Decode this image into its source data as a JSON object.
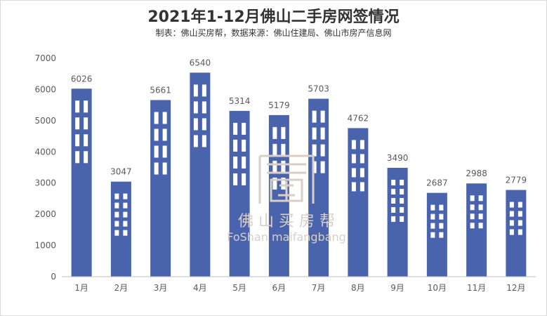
{
  "header": {
    "title": "2021年1-12月佛山二手房网签情况",
    "subtitle": "制表：佛山买房帮，数据来源：佛山住建局、佛山市房产信息网"
  },
  "watermark": {
    "chinese": "佛 山 买 房 帮",
    "english": "FoShan maifangbang"
  },
  "colors": {
    "bar": "#4a63ad",
    "window": "#ffffff",
    "axis": "#bfbfbf",
    "text": "#595959",
    "watermark": "#d8cfc6"
  },
  "chart_data": {
    "type": "bar",
    "title": "2021年1-12月佛山二手房网签情况",
    "xlabel": "",
    "ylabel": "",
    "ylim": [
      0,
      7000
    ],
    "yticks": [
      0,
      1000,
      2000,
      3000,
      4000,
      5000,
      6000,
      7000
    ],
    "grid": false,
    "categories": [
      "1月",
      "2月",
      "3月",
      "4月",
      "5月",
      "6月",
      "7月",
      "8月",
      "9月",
      "10月",
      "11月",
      "12月"
    ],
    "values": [
      6026,
      3047,
      5661,
      6540,
      5314,
      5179,
      5703,
      4762,
      3490,
      2687,
      2988,
      2779
    ]
  }
}
